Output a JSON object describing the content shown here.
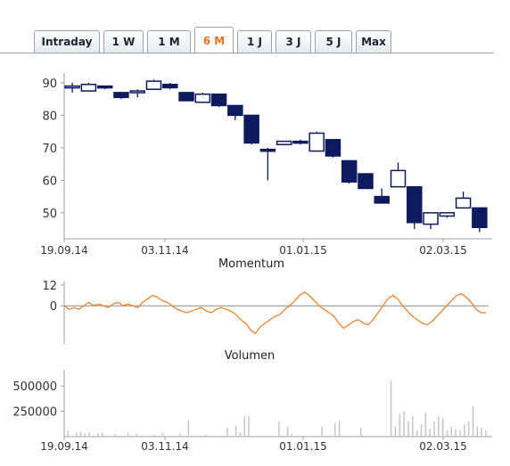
{
  "tabs": [
    {
      "label": "Intraday",
      "active": false
    },
    {
      "label": "1 W",
      "active": false
    },
    {
      "label": "1 M",
      "active": false
    },
    {
      "label": "6 M",
      "active": true
    },
    {
      "label": "1 J",
      "active": false
    },
    {
      "label": "3 J",
      "active": false
    },
    {
      "label": "5 J",
      "active": false
    },
    {
      "label": "Max",
      "active": false
    }
  ],
  "colors": {
    "up": "#ffffff",
    "down": "#0d1a5e",
    "candle_stroke": "#0d1a5e",
    "momentum": "#f07a1a",
    "volume": "#c8c8c8",
    "axis": "#9aa0a8",
    "active_tab": "#e8741e"
  },
  "chart_data": [
    {
      "type": "candlestick",
      "title": "",
      "ylim": [
        42,
        93
      ],
      "yticks": [
        90,
        80,
        70,
        60,
        50
      ],
      "xticks": [
        "19.09.14",
        "03.11.14",
        "01.01.15",
        "02.03.15"
      ],
      "candles": [
        {
          "o": 88.5,
          "h": 90.0,
          "l": 87.0,
          "c": 89.0
        },
        {
          "o": 87.5,
          "h": 90.0,
          "l": 87.5,
          "c": 89.5
        },
        {
          "o": 89.0,
          "h": 89.0,
          "l": 88.0,
          "c": 88.5
        },
        {
          "o": 87.0,
          "h": 87.0,
          "l": 85.0,
          "c": 85.5
        },
        {
          "o": 87.0,
          "h": 88.0,
          "l": 85.5,
          "c": 87.5
        },
        {
          "o": 88.0,
          "h": 91.0,
          "l": 88.0,
          "c": 90.5
        },
        {
          "o": 89.5,
          "h": 90.0,
          "l": 88.0,
          "c": 88.5
        },
        {
          "o": 87.0,
          "h": 87.0,
          "l": 84.5,
          "c": 84.5
        },
        {
          "o": 84.0,
          "h": 87.0,
          "l": 84.0,
          "c": 86.5
        },
        {
          "o": 86.5,
          "h": 86.5,
          "l": 82.5,
          "c": 83.0
        },
        {
          "o": 83.0,
          "h": 83.0,
          "l": 78.5,
          "c": 80.0
        },
        {
          "o": 80.0,
          "h": 80.0,
          "l": 71.0,
          "c": 71.5
        },
        {
          "o": 69.5,
          "h": 70.0,
          "l": 60.0,
          "c": 69.0
        },
        {
          "o": 71.0,
          "h": 72.0,
          "l": 71.0,
          "c": 72.0
        },
        {
          "o": 72.0,
          "h": 72.5,
          "l": 71.0,
          "c": 71.5
        },
        {
          "o": 69.0,
          "h": 75.0,
          "l": 69.0,
          "c": 74.5
        },
        {
          "o": 72.5,
          "h": 72.5,
          "l": 67.0,
          "c": 67.5
        },
        {
          "o": 66.0,
          "h": 66.0,
          "l": 59.0,
          "c": 59.5
        },
        {
          "o": 62.0,
          "h": 62.0,
          "l": 57.5,
          "c": 57.5
        },
        {
          "o": 55.0,
          "h": 57.5,
          "l": 53.0,
          "c": 53.0
        },
        {
          "o": 58.0,
          "h": 65.5,
          "l": 58.0,
          "c": 63.0
        },
        {
          "o": 58.0,
          "h": 58.0,
          "l": 45.0,
          "c": 47.0
        },
        {
          "o": 46.5,
          "h": 50.0,
          "l": 45.0,
          "c": 50.0
        },
        {
          "o": 49.0,
          "h": 50.0,
          "l": 48.5,
          "c": 50.0
        },
        {
          "o": 51.5,
          "h": 56.5,
          "l": 51.5,
          "c": 54.5
        },
        {
          "o": 51.5,
          "h": 51.5,
          "l": 44.0,
          "c": 45.5
        }
      ]
    },
    {
      "type": "line",
      "title": "Momentum",
      "ylim": [
        -22,
        14
      ],
      "yticks": [
        12,
        0
      ],
      "values": [
        0,
        -2,
        -1,
        -2,
        0,
        2,
        0,
        1,
        0,
        -1,
        1,
        2,
        0,
        1,
        0,
        -1,
        2,
        4,
        6,
        5,
        3,
        2,
        0,
        -2,
        -3,
        -4,
        -3,
        -2,
        -1,
        -3,
        -4,
        -2,
        -1,
        -2,
        -3,
        -5,
        -8,
        -10,
        -14,
        -16,
        -12,
        -10,
        -8,
        -6,
        -5,
        -2,
        0,
        3,
        6,
        8,
        6,
        3,
        0,
        -2,
        -4,
        -6,
        -10,
        -13,
        -11,
        -9,
        -8,
        -10,
        -11,
        -8,
        -4,
        0,
        4,
        6,
        4,
        0,
        -3,
        -6,
        -8,
        -10,
        -11,
        -9,
        -6,
        -3,
        0,
        3,
        6,
        7,
        5,
        2,
        -2,
        -4,
        -4
      ]
    },
    {
      "type": "bar",
      "title": "Volumen",
      "ylim": [
        0,
        660000
      ],
      "yticks": [
        500000,
        250000
      ],
      "xticks": [
        "19.09.14",
        "03.11.14",
        "01.01.15",
        "02.03.15"
      ],
      "values": [
        60000,
        0,
        40000,
        50000,
        30000,
        45000,
        0,
        35000,
        40000,
        0,
        0,
        25000,
        0,
        0,
        40000,
        0,
        30000,
        0,
        0,
        0,
        20000,
        0,
        35000,
        0,
        0,
        0,
        30000,
        0,
        160000,
        0,
        0,
        0,
        20000,
        0,
        0,
        0,
        0,
        90000,
        0,
        110000,
        45000,
        200000,
        200000,
        0,
        0,
        0,
        0,
        0,
        0,
        150000,
        0,
        100000,
        30000,
        0,
        0,
        0,
        0,
        0,
        0,
        100000,
        0,
        0,
        130000,
        160000,
        0,
        0,
        0,
        0,
        90000,
        0,
        0,
        0,
        0,
        0,
        0,
        550000,
        100000,
        220000,
        250000,
        150000,
        200000,
        60000,
        120000,
        240000,
        80000,
        150000,
        200000,
        180000,
        60000,
        100000,
        70000,
        60000,
        120000,
        150000,
        300000,
        100000,
        90000,
        60000
      ]
    }
  ]
}
